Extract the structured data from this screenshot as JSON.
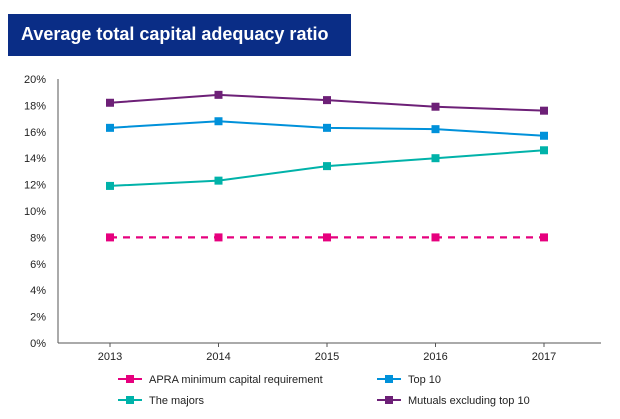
{
  "chart_data": {
    "type": "line",
    "title": "Average total capital adequacy ratio",
    "x": [
      "2013",
      "2014",
      "2015",
      "2016",
      "2017"
    ],
    "ylim": [
      0,
      20
    ],
    "yticks": [
      "0%",
      "2%",
      "4%",
      "6%",
      "8%",
      "10%",
      "12%",
      "14%",
      "16%",
      "18%",
      "20%"
    ],
    "grid": false,
    "legend_position": "bottom",
    "series": [
      {
        "name": "APRA minimum capital requirement",
        "values": [
          8,
          8,
          8,
          8,
          8
        ],
        "color": "#e6007e",
        "dashed": true
      },
      {
        "name": "The majors",
        "values": [
          11.9,
          12.3,
          13.4,
          14.0,
          14.6
        ],
        "color": "#00b2a9",
        "dashed": false
      },
      {
        "name": "Top 10",
        "values": [
          16.3,
          16.8,
          16.3,
          16.2,
          15.7
        ],
        "color": "#0091da",
        "dashed": false
      },
      {
        "name": "Mutuals excluding top 10",
        "values": [
          18.2,
          18.8,
          18.4,
          17.9,
          17.6
        ],
        "color": "#6d2077",
        "dashed": false
      }
    ]
  }
}
